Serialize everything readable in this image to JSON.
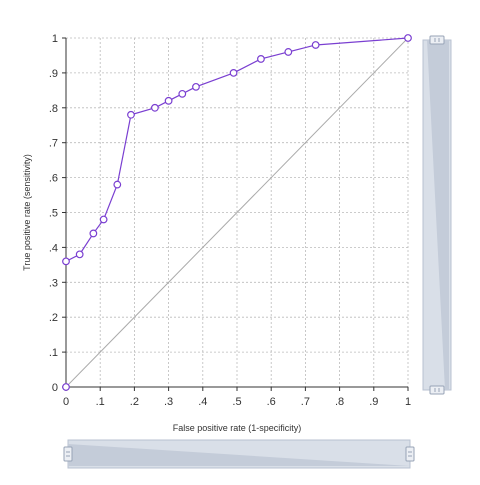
{
  "chart_data": {
    "type": "line",
    "title": "",
    "xlabel": "False positive rate (1-specificity)",
    "ylabel": "True positive rate (sensitivity)",
    "xlim": [
      0,
      1
    ],
    "ylim": [
      0,
      1
    ],
    "grid": true,
    "x_ticks": [
      0,
      0.1,
      0.2,
      0.3,
      0.4,
      0.5,
      0.6,
      0.7,
      0.8,
      0.9,
      1
    ],
    "x_tick_labels": [
      "0",
      ".1",
      ".2",
      ".3",
      ".4",
      ".5",
      ".6",
      ".7",
      ".8",
      ".9",
      "1"
    ],
    "y_ticks": [
      0,
      0.1,
      0.2,
      0.3,
      0.4,
      0.5,
      0.6,
      0.7,
      0.8,
      0.9,
      1
    ],
    "y_tick_labels": [
      "0",
      ".1",
      ".2",
      ".3",
      ".4",
      ".5",
      ".6",
      ".7",
      ".8",
      ".9",
      "1"
    ],
    "series": [
      {
        "color": "#7a3fd1",
        "marker": "hollow-circle",
        "x": [
          0,
          0.04,
          0.08,
          0.11,
          0.15,
          0.19,
          0.26,
          0.3,
          0.34,
          0.38,
          0.49,
          0.57,
          0.65,
          0.73,
          1.0
        ],
        "y": [
          0.36,
          0.38,
          0.44,
          0.48,
          0.58,
          0.78,
          0.8,
          0.82,
          0.84,
          0.86,
          0.9,
          0.94,
          0.96,
          0.98,
          1.0
        ]
      },
      {
        "color": "#aaaaaa",
        "marker": "none",
        "x": [
          0,
          1
        ],
        "y": [
          0,
          1
        ]
      }
    ],
    "extra_points": [
      {
        "x": 0,
        "y": 0
      }
    ]
  },
  "scrollbars": {
    "horizontal": {
      "range": [
        0,
        1
      ]
    },
    "vertical": {
      "range": [
        0,
        1
      ]
    }
  }
}
